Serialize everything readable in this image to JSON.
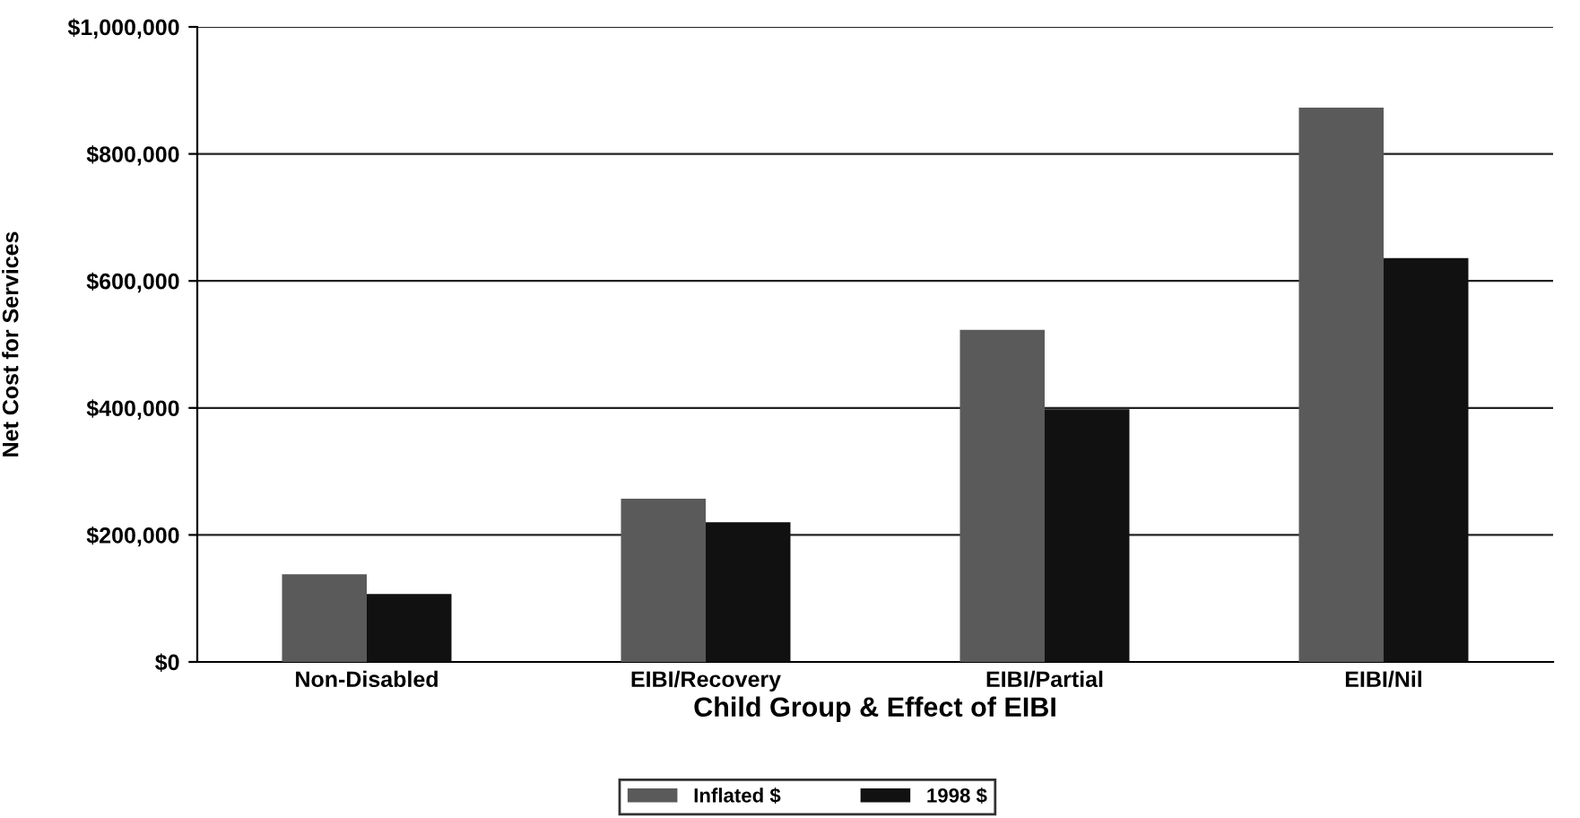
{
  "chart_data": {
    "type": "bar",
    "xlabel": "Child Group & Effect of EIBI",
    "ylabel": "Net Cost for Services",
    "categories": [
      "Non-Disabled",
      "EIBI/Recovery",
      "EIBI/Partial",
      "EIBI/Nil"
    ],
    "series": [
      {
        "name": "Inflated $",
        "color": "#5a5a5a",
        "values": [
          138000,
          257000,
          523000,
          873000
        ]
      },
      {
        "name": "1998 $",
        "color": "#111111",
        "values": [
          107000,
          220000,
          398000,
          636000
        ]
      }
    ],
    "ylim": [
      0,
      1000000
    ],
    "yticks": [
      {
        "value": 0,
        "label": "$0"
      },
      {
        "value": 200000,
        "label": "$200,000"
      },
      {
        "value": 400000,
        "label": "$400,000"
      },
      {
        "value": 600000,
        "label": "$600,000"
      },
      {
        "value": 800000,
        "label": "$800,000"
      },
      {
        "value": 1000000,
        "label": "$1,000,000"
      }
    ],
    "grid": "y",
    "legend": "bottom"
  }
}
